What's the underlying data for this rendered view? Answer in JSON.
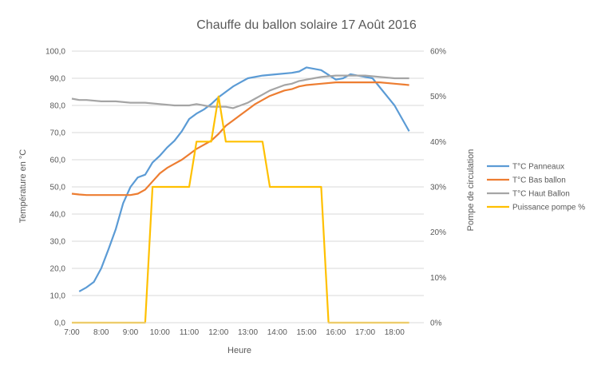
{
  "chart_data": {
    "type": "line",
    "title": "Chauffe du ballon solaire 17 Août 2016",
    "xlabel": "Heure",
    "ylabel": "Température en °C",
    "y2label": "Pompe de circulation",
    "x_ticks": [
      "7:00",
      "8:00",
      "9:00",
      "10:00",
      "11:00",
      "12:00",
      "13:00",
      "14:00",
      "15:00",
      "16:00",
      "17:00",
      "18:00"
    ],
    "y_ticks": [
      "0,0",
      "10,0",
      "20,0",
      "30,0",
      "40,0",
      "50,0",
      "60,0",
      "70,0",
      "80,0",
      "90,0",
      "100,0"
    ],
    "y2_ticks": [
      "0%",
      "10%",
      "20%",
      "30%",
      "40%",
      "50%",
      "60%"
    ],
    "xlim": [
      7.0,
      19.0
    ],
    "ylim": [
      0,
      100
    ],
    "y2lim": [
      0,
      60
    ],
    "grid": true,
    "legend_position": "right",
    "series": [
      {
        "name": "T°C Panneaux",
        "color": "#5b9bd5",
        "axis": "left",
        "points": [
          [
            7.25,
            11.5
          ],
          [
            7.5,
            13
          ],
          [
            7.75,
            15
          ],
          [
            8.0,
            20
          ],
          [
            8.25,
            27
          ],
          [
            8.5,
            34.5
          ],
          [
            8.75,
            44
          ],
          [
            9.0,
            50
          ],
          [
            9.25,
            53.5
          ],
          [
            9.5,
            54.5
          ],
          [
            9.75,
            59
          ],
          [
            10.0,
            61.5
          ],
          [
            10.25,
            64.5
          ],
          [
            10.5,
            67
          ],
          [
            10.75,
            70.5
          ],
          [
            11.0,
            75
          ],
          [
            11.25,
            77
          ],
          [
            11.5,
            78.5
          ],
          [
            11.75,
            80.5
          ],
          [
            12.0,
            83
          ],
          [
            12.25,
            85
          ],
          [
            12.5,
            87
          ],
          [
            12.75,
            88.5
          ],
          [
            13.0,
            90
          ],
          [
            13.5,
            91
          ],
          [
            14.0,
            91.5
          ],
          [
            14.5,
            92
          ],
          [
            14.75,
            92.5
          ],
          [
            15.0,
            94
          ],
          [
            15.5,
            93
          ],
          [
            16.0,
            89.5
          ],
          [
            16.25,
            90
          ],
          [
            16.5,
            91.5
          ],
          [
            17.0,
            90.5
          ],
          [
            17.25,
            90
          ],
          [
            18.0,
            80
          ],
          [
            18.5,
            70.5
          ]
        ]
      },
      {
        "name": "T°C Bas ballon",
        "color": "#ed7d31",
        "axis": "left",
        "points": [
          [
            7.0,
            47.5
          ],
          [
            7.25,
            47.2
          ],
          [
            7.5,
            47
          ],
          [
            8.0,
            47
          ],
          [
            8.5,
            47
          ],
          [
            9.0,
            47
          ],
          [
            9.25,
            47.5
          ],
          [
            9.5,
            49
          ],
          [
            9.75,
            52
          ],
          [
            10.0,
            55
          ],
          [
            10.25,
            57
          ],
          [
            10.5,
            58.5
          ],
          [
            10.75,
            60
          ],
          [
            11.0,
            62
          ],
          [
            11.25,
            64
          ],
          [
            11.5,
            65.5
          ],
          [
            11.75,
            67
          ],
          [
            12.0,
            69.5
          ],
          [
            12.25,
            72.5
          ],
          [
            12.5,
            74.5
          ],
          [
            12.75,
            76.5
          ],
          [
            13.0,
            78.5
          ],
          [
            13.25,
            80.5
          ],
          [
            13.5,
            82
          ],
          [
            13.75,
            83.5
          ],
          [
            14.0,
            84.5
          ],
          [
            14.25,
            85.5
          ],
          [
            14.5,
            86
          ],
          [
            14.75,
            87
          ],
          [
            15.0,
            87.5
          ],
          [
            15.5,
            88
          ],
          [
            16.0,
            88.5
          ],
          [
            17.0,
            88.5
          ],
          [
            17.5,
            88.5
          ],
          [
            18.0,
            88
          ],
          [
            18.5,
            87.5
          ]
        ]
      },
      {
        "name": "T°C Haut Ballon",
        "color": "#a5a5a5",
        "axis": "left",
        "points": [
          [
            7.0,
            82.5
          ],
          [
            7.25,
            82
          ],
          [
            7.5,
            82
          ],
          [
            8.0,
            81.5
          ],
          [
            8.5,
            81.5
          ],
          [
            9.0,
            81
          ],
          [
            9.5,
            81
          ],
          [
            10.0,
            80.5
          ],
          [
            10.5,
            80
          ],
          [
            11.0,
            80
          ],
          [
            11.25,
            80.5
          ],
          [
            11.5,
            80
          ],
          [
            11.75,
            79.5
          ],
          [
            12.0,
            79.5
          ],
          [
            12.25,
            79.5
          ],
          [
            12.5,
            79
          ],
          [
            12.75,
            80
          ],
          [
            13.0,
            81
          ],
          [
            13.25,
            82.5
          ],
          [
            13.5,
            84
          ],
          [
            13.75,
            85.5
          ],
          [
            14.0,
            86.5
          ],
          [
            14.25,
            87.5
          ],
          [
            14.5,
            88
          ],
          [
            14.75,
            89
          ],
          [
            15.0,
            89.5
          ],
          [
            15.25,
            90
          ],
          [
            15.5,
            90.5
          ],
          [
            16.0,
            91
          ],
          [
            16.5,
            91
          ],
          [
            17.0,
            91
          ],
          [
            17.5,
            90.5
          ],
          [
            18.0,
            90
          ],
          [
            18.5,
            90
          ]
        ]
      },
      {
        "name": "Puissance pompe %",
        "color": "#ffc000",
        "axis": "right",
        "points": [
          [
            7.0,
            0
          ],
          [
            9.5,
            0
          ],
          [
            9.75,
            30
          ],
          [
            10.0,
            30
          ],
          [
            10.75,
            30
          ],
          [
            11.0,
            30
          ],
          [
            11.25,
            40
          ],
          [
            11.5,
            40
          ],
          [
            11.75,
            40
          ],
          [
            12.0,
            50
          ],
          [
            12.25,
            40
          ],
          [
            12.5,
            40
          ],
          [
            13.0,
            40
          ],
          [
            13.5,
            40
          ],
          [
            13.75,
            30
          ],
          [
            14.5,
            30
          ],
          [
            15.0,
            30
          ],
          [
            15.5,
            30
          ],
          [
            15.75,
            0
          ],
          [
            16.0,
            0
          ],
          [
            17.0,
            0
          ],
          [
            17.75,
            0
          ],
          [
            18.5,
            0
          ]
        ]
      }
    ]
  }
}
